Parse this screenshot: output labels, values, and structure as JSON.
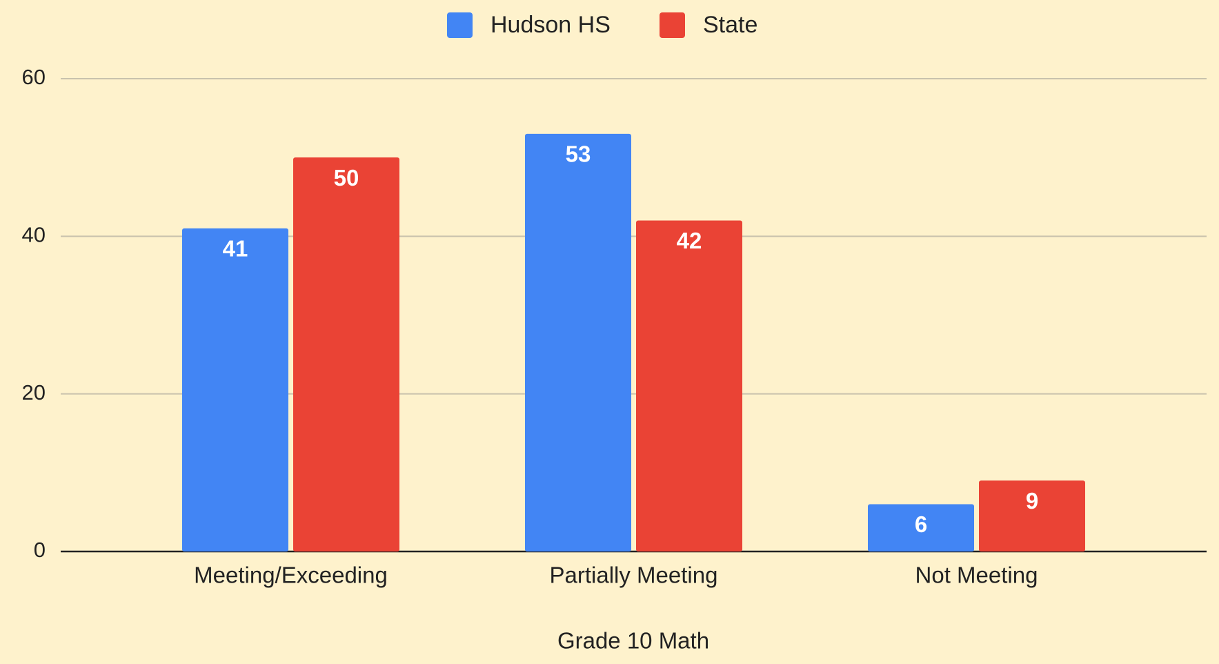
{
  "chart_data": {
    "type": "bar",
    "x_label": "Grade 10 Math",
    "categories": [
      "Meeting/Exceeding",
      "Partially Meeting",
      "Not Meeting"
    ],
    "series": [
      {
        "name": "Hudson HS",
        "color": "#4285f4",
        "values": [
          41,
          53,
          6
        ]
      },
      {
        "name": "State",
        "color": "#ea4335",
        "values": [
          50,
          42,
          9
        ]
      }
    ],
    "ylim": [
      0,
      60
    ],
    "yticks": [
      0,
      20,
      40,
      60
    ],
    "grid": true,
    "legend": "top",
    "background": "#fef2cc"
  }
}
